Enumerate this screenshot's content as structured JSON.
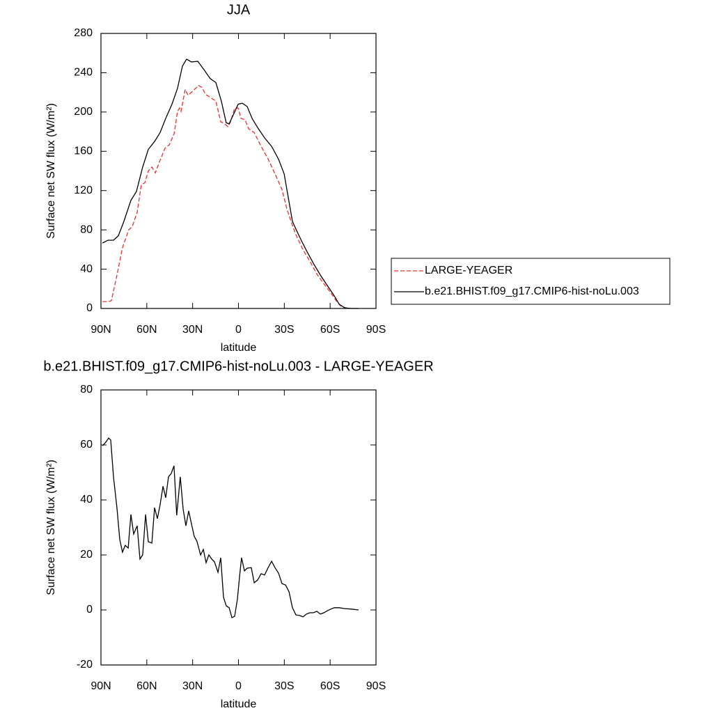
{
  "chart_data": [
    {
      "type": "line",
      "title": "JJA",
      "xlabel": "latitude",
      "ylabel": "Surface net SW flux (W/m²)",
      "xlim": [
        90,
        -90
      ],
      "xticks": [
        {
          "value": 90,
          "label": "90N"
        },
        {
          "value": 60,
          "label": "60N"
        },
        {
          "value": 30,
          "label": "30N"
        },
        0,
        {
          "value": -30,
          "label": "30S"
        },
        {
          "value": -60,
          "label": "60S"
        },
        {
          "value": -90,
          "label": "90S"
        }
      ],
      "ylim": [
        0,
        280
      ],
      "yticks": [
        0,
        40,
        80,
        120,
        160,
        200,
        240,
        280
      ],
      "legend": "outside-right",
      "series": [
        {
          "name": "LARGE-YEAGER",
          "color": "#e8302f",
          "dash": true,
          "x": [
            89,
            85.4,
            83.2,
            79.5,
            75.9,
            71.8,
            69.5,
            66.3,
            63.6,
            61.3,
            59,
            56.7,
            54.4,
            51.3,
            48.1,
            45.3,
            42.1,
            39.9,
            38.5,
            37.6,
            34.9,
            33,
            29.4,
            26.2,
            23.9,
            21.6,
            18.5,
            14.8,
            11.6,
            9.3,
            7,
            5.2,
            2.5,
            0.2,
            -1.6,
            -4.3,
            -6.6,
            -10.3,
            -14.8,
            -19.4,
            -23.9,
            -28.5,
            -31.7,
            -34.4,
            -37.6,
            -42.2,
            -46.7,
            -51.3,
            -55.9,
            -60.4,
            -64,
            -67.2,
            -71.8
          ],
          "values": [
            7,
            7,
            7.8,
            34,
            62,
            80,
            83.6,
            97.8,
            126,
            128,
            140,
            144,
            138,
            151,
            163,
            166.6,
            178,
            200.6,
            204,
            200.6,
            223,
            217,
            222,
            227,
            225,
            218,
            215,
            211,
            190,
            188.5,
            185,
            190,
            204,
            204,
            193.5,
            192,
            183,
            179,
            165,
            152,
            137,
            121,
            101,
            88.6,
            75,
            60,
            48,
            35,
            25,
            16,
            7.8,
            2,
            0
          ]
        },
        {
          "name": "b.e21.BHIST.f09_g17.CMIP6-hist-noLu.003",
          "color": "#000000",
          "dash": false,
          "x": [
            89,
            85.4,
            81.8,
            78.6,
            75,
            70.4,
            66.8,
            62.7,
            59,
            54.9,
            51.3,
            47.6,
            43.5,
            39.9,
            36.7,
            34,
            30.8,
            26.6,
            22.5,
            18.5,
            14.8,
            11.2,
            8,
            6.1,
            3.4,
            0.2,
            -2.5,
            -5.7,
            -8.9,
            -12.6,
            -17.1,
            -21.7,
            -26.2,
            -29.9,
            -33.1,
            -35.3,
            -39.9,
            -44.5,
            -49,
            -53.6,
            -58.1,
            -62.7,
            -65.9,
            -69.5,
            -74,
            -78.6
          ],
          "values": [
            66.6,
            69.5,
            69.5,
            74,
            88.6,
            110,
            119,
            144,
            162,
            170,
            179,
            193.5,
            208,
            224,
            246.7,
            253.8,
            251,
            251.6,
            243,
            234,
            230,
            211,
            189,
            188,
            197,
            208,
            209,
            205.6,
            193.5,
            184,
            173.7,
            165,
            152,
            137,
            108.5,
            88.6,
            73,
            58.8,
            46,
            34,
            23.4,
            12.8,
            4.3,
            0.7,
            0,
            0
          ]
        }
      ]
    },
    {
      "type": "line",
      "title": "b.e21.BHIST.f09_g17.CMIP6-hist-noLu.003 - LARGE-YEAGER",
      "xlabel": "latitude",
      "ylabel": "Surface net SW flux (W/m²)",
      "xlim": [
        90,
        -90
      ],
      "xticks": [
        {
          "value": 90,
          "label": "90N"
        },
        {
          "value": 60,
          "label": "60N"
        },
        {
          "value": 30,
          "label": "30N"
        },
        0,
        {
          "value": -30,
          "label": "30S"
        },
        {
          "value": -60,
          "label": "60S"
        },
        {
          "value": -90,
          "label": "90S"
        }
      ],
      "ylim": [
        -20,
        80
      ],
      "yticks": [
        -20,
        0,
        20,
        40,
        60,
        80
      ],
      "series": [
        {
          "color": "#000000",
          "dash": false,
          "x": [
            89,
            86.8,
            85,
            83.6,
            81.8,
            79.5,
            77.7,
            75.9,
            74.1,
            72.2,
            70.4,
            68.6,
            66.3,
            64.5,
            62.7,
            60.8,
            59,
            56.7,
            54.9,
            53.1,
            51.3,
            49.4,
            47.6,
            45.8,
            44,
            42.2,
            40.4,
            38.1,
            36.2,
            34.4,
            32.6,
            30.8,
            29,
            27.2,
            24.8,
            23,
            21.2,
            19.4,
            17.5,
            15.7,
            13.4,
            11.6,
            9.8,
            8,
            6.1,
            4.3,
            2.5,
            0.7,
            -0.7,
            -2,
            -3.9,
            -5.7,
            -8.4,
            -10.3,
            -12.6,
            -14.8,
            -17.1,
            -19.4,
            -21.7,
            -23.9,
            -26.2,
            -28.5,
            -30.8,
            -33.1,
            -35.3,
            -37.6,
            -39.9,
            -42.2,
            -44.5,
            -46.7,
            -49,
            -51.3,
            -53.6,
            -55.9,
            -58.1,
            -60.4,
            -62.7,
            -65.9,
            -69.5,
            -74,
            -78.6
          ],
          "values": [
            59.7,
            61,
            62.5,
            61.8,
            48.4,
            37,
            25.6,
            21,
            23.5,
            22.5,
            34.7,
            27.6,
            30.6,
            18.5,
            20,
            34.7,
            24.8,
            24.3,
            37.2,
            33.2,
            38.2,
            45,
            40.8,
            48.4,
            49.6,
            52.4,
            34.4,
            48.4,
            36.5,
            30.6,
            36,
            31.4,
            26.8,
            25,
            20,
            22,
            17.2,
            20,
            18.5,
            17.5,
            13.7,
            19,
            4.6,
            1.5,
            0.8,
            -2.8,
            -2.3,
            4,
            12,
            19,
            14.2,
            15.2,
            15.4,
            9.9,
            10.9,
            13.2,
            12.7,
            15.4,
            17.7,
            15.4,
            13.4,
            9.6,
            9.1,
            6.6,
            0.8,
            -1.8,
            -2,
            -2.5,
            -1.5,
            -1,
            -1,
            -0.5,
            -1.5,
            -1,
            -0.3,
            0.3,
            0.8,
            0.8,
            0.5,
            0.3,
            0
          ]
        }
      ]
    }
  ]
}
